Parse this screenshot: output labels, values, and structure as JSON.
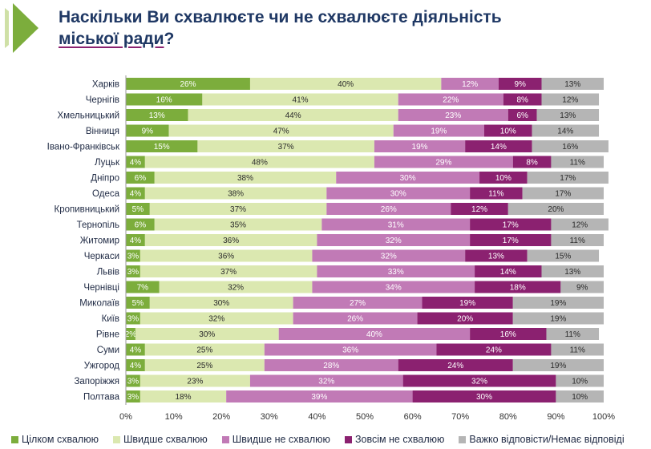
{
  "title": {
    "line1": "Наскільки Ви схвалюєте чи не схвалюєте діяльність",
    "line2_underlined": "міської ради",
    "line2_suffix": "?"
  },
  "colors": {
    "series": [
      "#7cad3c",
      "#dbe8b0",
      "#c17ab6",
      "#8b2170",
      "#b5b5b5"
    ],
    "title": "#1f3864",
    "logo": "#7cad3c"
  },
  "chart_data": {
    "type": "bar",
    "orientation": "horizontal",
    "stacked": true,
    "categories": [
      "Харків",
      "Чернігів",
      "Хмельницький",
      "Вінниця",
      "Івано-Франківськ",
      "Луцьк",
      "Дніпро",
      "Одеса",
      "Кропивницький",
      "Тернопіль",
      "Житомир",
      "Черкаси",
      "Львів",
      "Чернівці",
      "Миколаїв",
      "Київ",
      "Рівне",
      "Суми",
      "Ужгород",
      "Запоріжжя",
      "Полтава"
    ],
    "series": [
      {
        "name": "Цілком схвалюю",
        "values": [
          26,
          16,
          13,
          9,
          15,
          4,
          6,
          4,
          5,
          6,
          4,
          3,
          3,
          7,
          5,
          3,
          2,
          4,
          4,
          3,
          3
        ]
      },
      {
        "name": "Швидше схвалюю",
        "values": [
          40,
          41,
          44,
          47,
          37,
          48,
          38,
          38,
          37,
          35,
          36,
          36,
          37,
          32,
          30,
          32,
          30,
          25,
          25,
          23,
          18
        ]
      },
      {
        "name": "Швидше не схвалюю",
        "values": [
          12,
          22,
          23,
          19,
          19,
          29,
          30,
          30,
          26,
          31,
          32,
          32,
          33,
          34,
          27,
          26,
          40,
          36,
          28,
          32,
          39
        ]
      },
      {
        "name": "Зовсім не схвалюю",
        "values": [
          9,
          8,
          6,
          10,
          14,
          8,
          10,
          11,
          12,
          17,
          17,
          13,
          14,
          18,
          19,
          20,
          16,
          24,
          24,
          32,
          30
        ]
      },
      {
        "name": "Важко відповісти/Немає відповіді",
        "values": [
          13,
          12,
          13,
          14,
          16,
          11,
          17,
          17,
          20,
          12,
          11,
          15,
          13,
          9,
          19,
          19,
          11,
          11,
          19,
          10,
          10
        ]
      }
    ],
    "xlim": [
      0,
      100
    ],
    "xticks": [
      "0%",
      "10%",
      "20%",
      "30%",
      "40%",
      "50%",
      "60%",
      "70%",
      "80%",
      "90%",
      "100%"
    ],
    "legend_position": "bottom",
    "value_suffix": "%",
    "grid": false
  }
}
